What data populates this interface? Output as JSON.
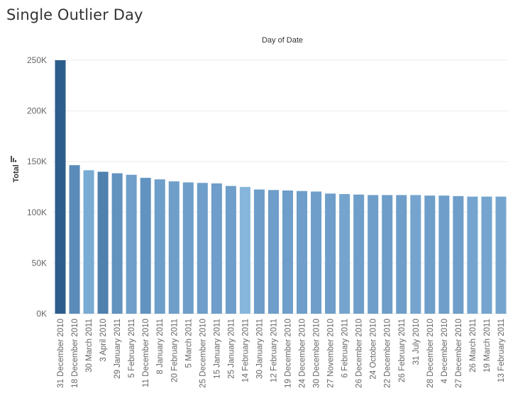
{
  "title": "Single Outlier Day",
  "chart_data": {
    "type": "bar",
    "title": "Single Outlier Day",
    "xlabel": "Day of Date",
    "ylabel": "Total",
    "ylim": [
      0,
      250000
    ],
    "yticks": [
      0,
      50000,
      100000,
      150000,
      200000,
      250000
    ],
    "ytick_labels": [
      "0K",
      "50K",
      "100K",
      "150K",
      "200K",
      "250K"
    ],
    "grid": true,
    "categories": [
      "31 December 2010",
      "18 December 2010",
      "30 March 2011",
      "3 April 2010",
      "29 January 2011",
      "5 February 2011",
      "11 December 2010",
      "8 January 2011",
      "20 February 2011",
      "5 March 2011",
      "25 December 2010",
      "15 January 2011",
      "25 January 2011",
      "14 February 2011",
      "30 January 2011",
      "12 February 2011",
      "19 December 2010",
      "24 December 2010",
      "30 December 2010",
      "27 November 2010",
      "6 February 2011",
      "26 December 2010",
      "24 October 2010",
      "22 December 2010",
      "26 February 2011",
      "31 July 2010",
      "28 December 2010",
      "4 December 2010",
      "27 December 2010",
      "26 March 2011",
      "19 March 2011",
      "13 February 2011"
    ],
    "values": [
      250000,
      146500,
      141500,
      140000,
      138500,
      137000,
      134000,
      132500,
      130500,
      129500,
      129000,
      128500,
      126000,
      125000,
      122500,
      122000,
      121500,
      121000,
      120500,
      118500,
      118000,
      117500,
      117000,
      117000,
      117000,
      117000,
      116500,
      116500,
      116000,
      115500,
      115500,
      115500
    ],
    "colors": [
      "#2d5d8b",
      "#5b8bb9",
      "#79abd3",
      "#4f80ae",
      "#6292bf",
      "#6e9ec9",
      "#6293c0",
      "#6e9ec9",
      "#6e9ec9",
      "#6e9ec9",
      "#6e9ec9",
      "#6e9ec9",
      "#6e9ec9",
      "#86b6db",
      "#6e9ec9",
      "#6e9ec9",
      "#6e9ec9",
      "#6e9ec9",
      "#6e9ec9",
      "#6e9ec9",
      "#75a5cf",
      "#6e9ec9",
      "#6e9ec9",
      "#6e9ec9",
      "#6e9ec9",
      "#75a5cf",
      "#6e9ec9",
      "#6e9ec9",
      "#6e9ec9",
      "#75a5cf",
      "#75a5cf",
      "#75a5cf"
    ]
  }
}
